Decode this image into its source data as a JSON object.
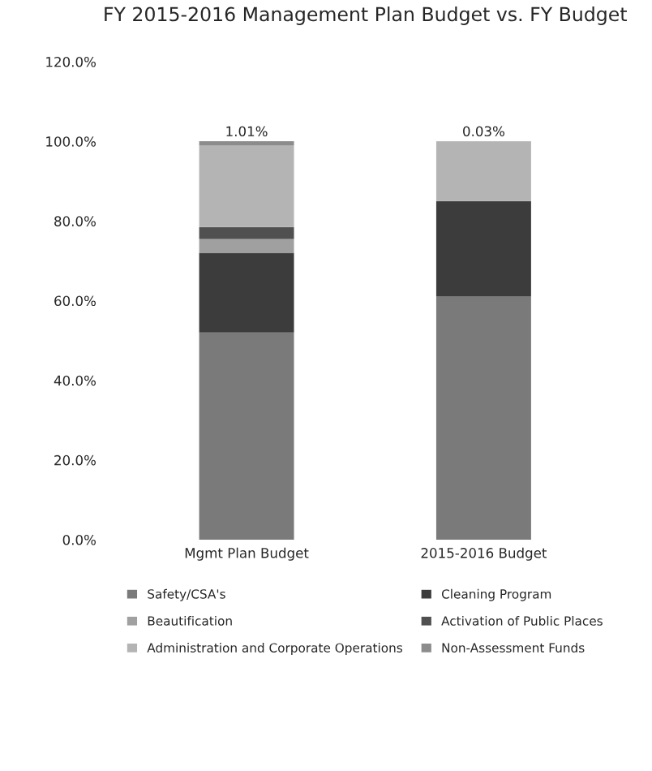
{
  "chart_data": {
    "type": "bar",
    "stacked": true,
    "title": "FY 2015-2016 Management Plan Budget vs. FY Budget",
    "categories": [
      "Mgmt Plan Budget",
      "2015-2016 Budget"
    ],
    "series": [
      {
        "name": "Safety/CSA's",
        "color": "#7a7a7a",
        "values": [
          52,
          61
        ]
      },
      {
        "name": "Cleaning Program",
        "color": "#3c3c3c",
        "values": [
          20,
          24
        ]
      },
      {
        "name": "Beautification",
        "color": "#a0a0a0",
        "values": [
          3.5,
          0
        ]
      },
      {
        "name": "Activation of Public Places",
        "color": "#505050",
        "values": [
          3,
          0
        ]
      },
      {
        "name": "Administration and Corporate Operations",
        "color": "#b4b4b4",
        "values": [
          20.5,
          15
        ]
      },
      {
        "name": "Non-Assessment Funds",
        "color": "#8c8c8c",
        "values": [
          1.01,
          0.03
        ],
        "value_labels": [
          "1.01%",
          "0.03%"
        ]
      }
    ],
    "ylim": [
      0,
      120
    ],
    "yticks": [
      {
        "value": 0,
        "label": "0.0%"
      },
      {
        "value": 20,
        "label": "20.0%"
      },
      {
        "value": 40,
        "label": "40.0%"
      },
      {
        "value": 60,
        "label": "60.0%"
      },
      {
        "value": 80,
        "label": "80.0%"
      },
      {
        "value": 100,
        "label": "100.0%"
      },
      {
        "value": 120,
        "label": "120.0%"
      }
    ],
    "grid": false,
    "legend": "bottom"
  }
}
